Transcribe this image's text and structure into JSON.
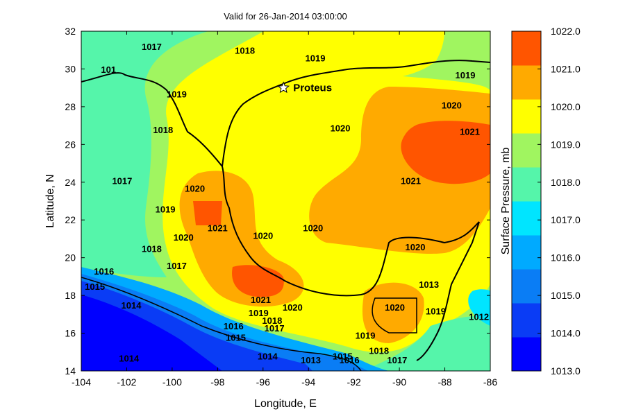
{
  "chart_data": {
    "type": "heatmap",
    "title": "Valid for 26-Jan-2014 03:00:00",
    "xlabel": "Longitude, E",
    "ylabel": "Latitude, N",
    "xlim": [
      -104,
      -86
    ],
    "ylim": [
      14,
      32
    ],
    "xticks": [
      "-104",
      "-102",
      "-100",
      "-98",
      "-96",
      "-94",
      "-92",
      "-90",
      "-88",
      "-86"
    ],
    "yticks": [
      "14",
      "16",
      "18",
      "20",
      "22",
      "24",
      "26",
      "28",
      "30",
      "32"
    ],
    "colorbar": {
      "label": "Surface Pressure, mb",
      "ticks": [
        "1013.0",
        "1014.0",
        "1015.0",
        "1016.0",
        "1017.0",
        "1018.0",
        "1019.0",
        "1020.0",
        "1021.0",
        "1022.0"
      ],
      "colors": [
        "#0000ff",
        "#0a3cf5",
        "#0a7df5",
        "#00aaff",
        "#00e5ff",
        "#55f5aa",
        "#a0f560",
        "#ffff00",
        "#ffaa00",
        "#ff5500"
      ]
    },
    "marker": {
      "name": "Proteus",
      "lon": -95.1,
      "lat": 29.0
    },
    "contour_labels": [
      {
        "text": "1017",
        "lon": -100.9,
        "lat": 31.0
      },
      {
        "text": "1018",
        "lon": -96.8,
        "lat": 30.8
      },
      {
        "text": "1019",
        "lon": -93.7,
        "lat": 30.4
      },
      {
        "text": "101",
        "lon": -102.8,
        "lat": 29.8
      },
      {
        "text": "1019",
        "lon": -99.8,
        "lat": 28.5
      },
      {
        "text": "1019",
        "lon": -87.1,
        "lat": 29.5
      },
      {
        "text": "1020",
        "lon": -87.7,
        "lat": 27.9
      },
      {
        "text": "1021",
        "lon": -86.9,
        "lat": 26.5
      },
      {
        "text": "1020",
        "lon": -92.6,
        "lat": 26.7
      },
      {
        "text": "1018",
        "lon": -100.4,
        "lat": 26.6
      },
      {
        "text": "1021",
        "lon": -89.5,
        "lat": 23.9
      },
      {
        "text": "1017",
        "lon": -102.2,
        "lat": 23.9
      },
      {
        "text": "1020",
        "lon": -99.0,
        "lat": 23.5
      },
      {
        "text": "1019",
        "lon": -100.3,
        "lat": 22.4
      },
      {
        "text": "1021",
        "lon": -98.0,
        "lat": 21.4
      },
      {
        "text": "1020",
        "lon": -96.0,
        "lat": 21.0
      },
      {
        "text": "1020",
        "lon": -93.8,
        "lat": 21.4
      },
      {
        "text": "1020",
        "lon": -99.5,
        "lat": 20.9
      },
      {
        "text": "1018",
        "lon": -100.9,
        "lat": 20.3
      },
      {
        "text": "1020",
        "lon": -89.3,
        "lat": 20.4
      },
      {
        "text": "1017",
        "lon": -99.8,
        "lat": 19.4
      },
      {
        "text": "1016",
        "lon": -103.0,
        "lat": 19.1
      },
      {
        "text": "1015",
        "lon": -103.4,
        "lat": 18.3
      },
      {
        "text": "1013",
        "lon": -88.7,
        "lat": 18.4
      },
      {
        "text": "1014",
        "lon": -101.8,
        "lat": 17.3
      },
      {
        "text": "1021",
        "lon": -96.1,
        "lat": 17.6
      },
      {
        "text": "1020",
        "lon": -94.7,
        "lat": 17.2
      },
      {
        "text": "1019",
        "lon": -96.2,
        "lat": 16.9
      },
      {
        "text": "1018",
        "lon": -95.6,
        "lat": 16.5
      },
      {
        "text": "1017",
        "lon": -95.5,
        "lat": 16.1
      },
      {
        "text": "1016",
        "lon": -97.3,
        "lat": 16.2
      },
      {
        "text": "1015",
        "lon": -97.2,
        "lat": 15.6
      },
      {
        "text": "1020",
        "lon": -90.2,
        "lat": 17.2
      },
      {
        "text": "1019",
        "lon": -88.4,
        "lat": 17.0
      },
      {
        "text": "1019",
        "lon": -91.5,
        "lat": 15.7
      },
      {
        "text": "1018",
        "lon": -90.9,
        "lat": 14.9
      },
      {
        "text": "1017",
        "lon": -90.1,
        "lat": 14.4
      },
      {
        "text": "1016",
        "lon": -92.2,
        "lat": 14.4
      },
      {
        "text": "1015",
        "lon": -92.5,
        "lat": 14.6
      },
      {
        "text": "1014",
        "lon": -95.8,
        "lat": 14.6
      },
      {
        "text": "1013",
        "lon": -93.9,
        "lat": 14.4
      },
      {
        "text": "1014",
        "lon": -101.9,
        "lat": 14.5
      },
      {
        "text": "1012",
        "lon": -86.5,
        "lat": 16.7
      }
    ]
  }
}
